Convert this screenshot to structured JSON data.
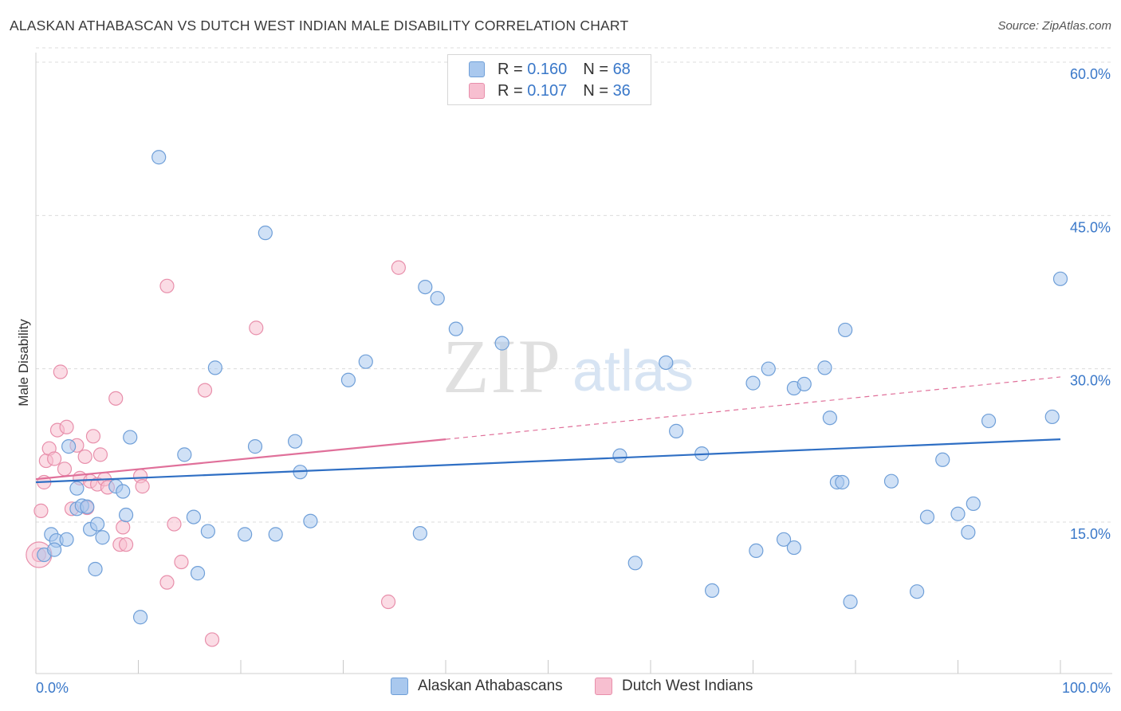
{
  "title": "ALASKAN ATHABASCAN VS DUTCH WEST INDIAN MALE DISABILITY CORRELATION CHART",
  "source": "Source: ZipAtlas.com",
  "watermark": {
    "zip": "ZIP",
    "atlas": "atlas"
  },
  "legend": {
    "rows": [
      {
        "r_label": "R = ",
        "r_value": "0.160",
        "n_label": "N = ",
        "n_value": "68"
      },
      {
        "r_label": "R = ",
        "r_value": "0.107",
        "n_label": "N = ",
        "n_value": "36"
      }
    ]
  },
  "colors": {
    "blue_fill": "#a9c8ee",
    "blue_stroke": "#6f9fd8",
    "blue_line": "#2f6fc4",
    "pink_fill": "#f7bfd0",
    "pink_stroke": "#e88fab",
    "pink_line": "#e0709a",
    "tick_label": "#3a78c9",
    "grid": "#dcdcdc"
  },
  "chart_data": {
    "type": "scatter",
    "title": "ALASKAN ATHABASCAN VS DUTCH WEST INDIAN MALE DISABILITY CORRELATION CHART",
    "xlabel": "",
    "ylabel": "Male Disability",
    "xlim": [
      0,
      100
    ],
    "ylim": [
      0,
      62
    ],
    "x_tick_labels": [
      "0.0%",
      "100.0%"
    ],
    "y_ticks": [
      15,
      30,
      45,
      60
    ],
    "y_tick_labels": [
      "15.0%",
      "30.0%",
      "45.0%",
      "60.0%"
    ],
    "grid": true,
    "legend_position": "bottom",
    "series": [
      {
        "name": "Alaskan Athabascans",
        "r": 0.16,
        "n": 68,
        "trend": {
          "x0": 0,
          "y0": 18.9,
          "x1": 100,
          "y1": 23.1,
          "style": "solid"
        },
        "points": [
          [
            0.8,
            11.8
          ],
          [
            1.5,
            13.8
          ],
          [
            2.0,
            13.2
          ],
          [
            1.8,
            12.3
          ],
          [
            3.0,
            13.3
          ],
          [
            3.2,
            22.4
          ],
          [
            4.0,
            16.3
          ],
          [
            4.5,
            16.6
          ],
          [
            4.0,
            18.3
          ],
          [
            5.0,
            16.5
          ],
          [
            5.3,
            14.3
          ],
          [
            6.0,
            14.8
          ],
          [
            5.8,
            10.4
          ],
          [
            6.5,
            13.5
          ],
          [
            7.8,
            18.5
          ],
          [
            8.5,
            18.0
          ],
          [
            8.8,
            15.7
          ],
          [
            9.2,
            23.3
          ],
          [
            10.2,
            5.7
          ],
          [
            12.0,
            50.7
          ],
          [
            14.5,
            21.6
          ],
          [
            15.4,
            15.5
          ],
          [
            15.8,
            10.0
          ],
          [
            16.8,
            14.1
          ],
          [
            17.5,
            30.1
          ],
          [
            20.4,
            13.8
          ],
          [
            21.4,
            22.4
          ],
          [
            22.4,
            43.3
          ],
          [
            23.4,
            13.8
          ],
          [
            25.3,
            22.9
          ],
          [
            25.8,
            19.9
          ],
          [
            26.8,
            15.1
          ],
          [
            30.5,
            28.9
          ],
          [
            32.2,
            30.7
          ],
          [
            37.5,
            13.9
          ],
          [
            38.0,
            38.0
          ],
          [
            39.2,
            36.9
          ],
          [
            41.0,
            33.9
          ],
          [
            45.5,
            32.5
          ],
          [
            57.0,
            21.5
          ],
          [
            58.5,
            11.0
          ],
          [
            61.5,
            30.6
          ],
          [
            62.5,
            23.9
          ],
          [
            65.0,
            21.7
          ],
          [
            66.0,
            8.3
          ],
          [
            70.0,
            28.6
          ],
          [
            70.3,
            12.2
          ],
          [
            71.5,
            30.0
          ],
          [
            73.0,
            13.3
          ],
          [
            74.0,
            12.5
          ],
          [
            74.0,
            28.1
          ],
          [
            75.0,
            28.5
          ],
          [
            77.0,
            30.1
          ],
          [
            77.5,
            25.2
          ],
          [
            78.2,
            18.9
          ],
          [
            78.7,
            18.9
          ],
          [
            79.0,
            33.8
          ],
          [
            79.5,
            7.2
          ],
          [
            83.5,
            19.0
          ],
          [
            86.0,
            8.2
          ],
          [
            87.0,
            15.5
          ],
          [
            88.5,
            21.1
          ],
          [
            90.0,
            15.8
          ],
          [
            91.0,
            14.0
          ],
          [
            91.5,
            16.8
          ],
          [
            93.0,
            24.9
          ],
          [
            99.2,
            25.3
          ],
          [
            100.0,
            38.8
          ]
        ]
      },
      {
        "name": "Dutch West Indians",
        "r": 0.107,
        "n": 36,
        "trend": {
          "x0": 0,
          "y0": 19.2,
          "x1": 40,
          "y1": 23.1,
          "x2": 100,
          "y2": 29.2,
          "style": "solid-then-dashed"
        },
        "points": [
          [
            0.3,
            11.8
          ],
          [
            0.5,
            16.1
          ],
          [
            0.8,
            18.9
          ],
          [
            1.0,
            21.0
          ],
          [
            1.3,
            22.2
          ],
          [
            1.8,
            21.2
          ],
          [
            2.1,
            24.0
          ],
          [
            2.4,
            29.7
          ],
          [
            2.8,
            20.2
          ],
          [
            3.0,
            24.3
          ],
          [
            3.5,
            16.3
          ],
          [
            4.0,
            22.5
          ],
          [
            4.3,
            19.3
          ],
          [
            4.8,
            21.4
          ],
          [
            5.0,
            16.4
          ],
          [
            5.3,
            19.0
          ],
          [
            5.6,
            23.4
          ],
          [
            6.0,
            18.7
          ],
          [
            6.3,
            21.6
          ],
          [
            6.7,
            19.2
          ],
          [
            7.0,
            18.4
          ],
          [
            7.8,
            27.1
          ],
          [
            8.2,
            12.8
          ],
          [
            8.5,
            14.5
          ],
          [
            8.8,
            12.8
          ],
          [
            10.2,
            19.5
          ],
          [
            10.4,
            18.5
          ],
          [
            12.8,
            9.1
          ],
          [
            12.8,
            38.1
          ],
          [
            13.5,
            14.8
          ],
          [
            14.2,
            11.1
          ],
          [
            16.5,
            27.9
          ],
          [
            17.2,
            3.5
          ],
          [
            21.5,
            34.0
          ],
          [
            34.4,
            7.2
          ],
          [
            35.4,
            39.9
          ]
        ]
      }
    ]
  },
  "bottom_legend": [
    "Alaskan Athabascans",
    "Dutch West Indians"
  ]
}
